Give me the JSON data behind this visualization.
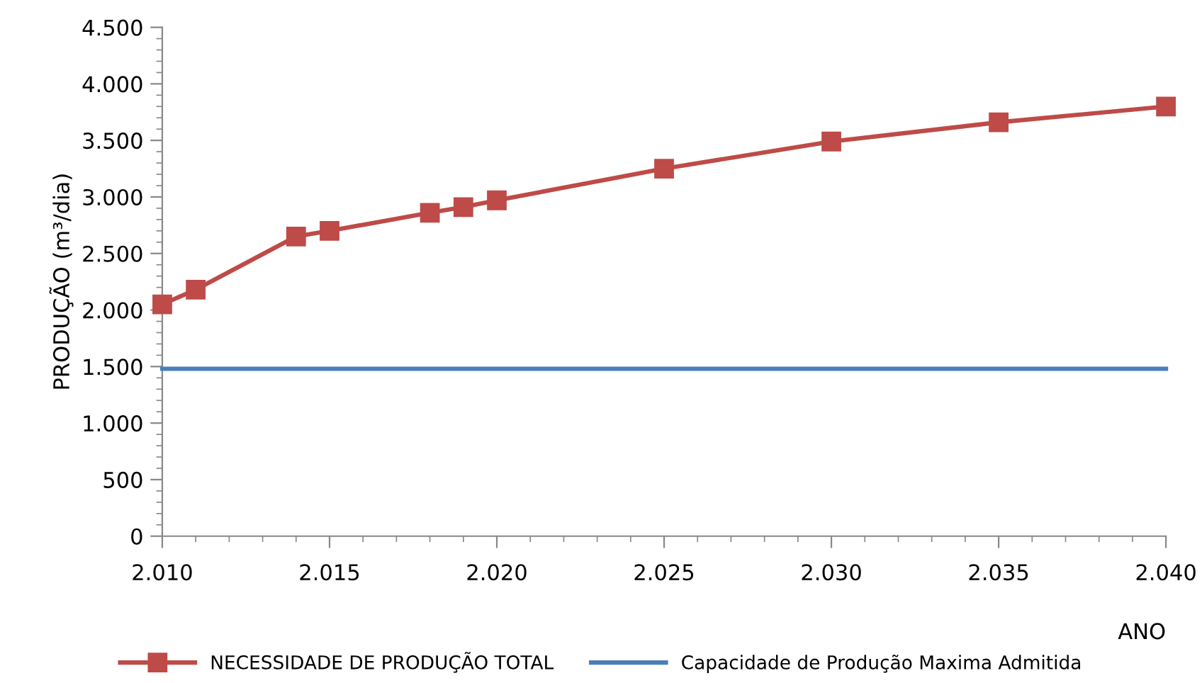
{
  "chart_data": {
    "type": "line",
    "xlabel": "ANO",
    "ylabel": "PRODUÇÃO (m³/dia)",
    "xlim": [
      2010,
      2040
    ],
    "ylim": [
      0,
      4500
    ],
    "xticks": [
      {
        "value": 2010,
        "label": "2.010"
      },
      {
        "value": 2015,
        "label": "2.015"
      },
      {
        "value": 2020,
        "label": "2.020"
      },
      {
        "value": 2025,
        "label": "2.025"
      },
      {
        "value": 2030,
        "label": "2.030"
      },
      {
        "value": 2035,
        "label": "2.035"
      },
      {
        "value": 2040,
        "label": "2.040"
      }
    ],
    "yticks": [
      0,
      500,
      {
        "value": 1000,
        "label": "1.000"
      },
      {
        "value": 1500,
        "label": "1.500"
      },
      {
        "value": 2000,
        "label": "2.000"
      },
      {
        "value": 2500,
        "label": "2.500"
      },
      {
        "value": 3000,
        "label": "3.000"
      },
      {
        "value": 3500,
        "label": "3.500"
      },
      {
        "value": 4000,
        "label": "4.000"
      },
      {
        "value": 4500,
        "label": "4.500"
      }
    ],
    "grid": false,
    "legend": "bottom",
    "line_style": "solid",
    "series": [
      {
        "name": "NECESSIDADE DE PRODUÇÃO TOTAL",
        "color": "#be4b48",
        "marker": "square",
        "x": [
          2010,
          2011,
          2014,
          2015,
          2018,
          2019,
          2020,
          2025,
          2030,
          2035,
          2040
        ],
        "values": [
          2050,
          2180,
          2650,
          2700,
          2860,
          2910,
          2970,
          3250,
          3490,
          3660,
          3800
        ]
      },
      {
        "name": "Capacidade de Produção Maxima Admitida",
        "color": "#4a7ebb",
        "marker": "none",
        "x": [
          2010,
          2040
        ],
        "values": [
          1480,
          1480
        ]
      }
    ]
  }
}
